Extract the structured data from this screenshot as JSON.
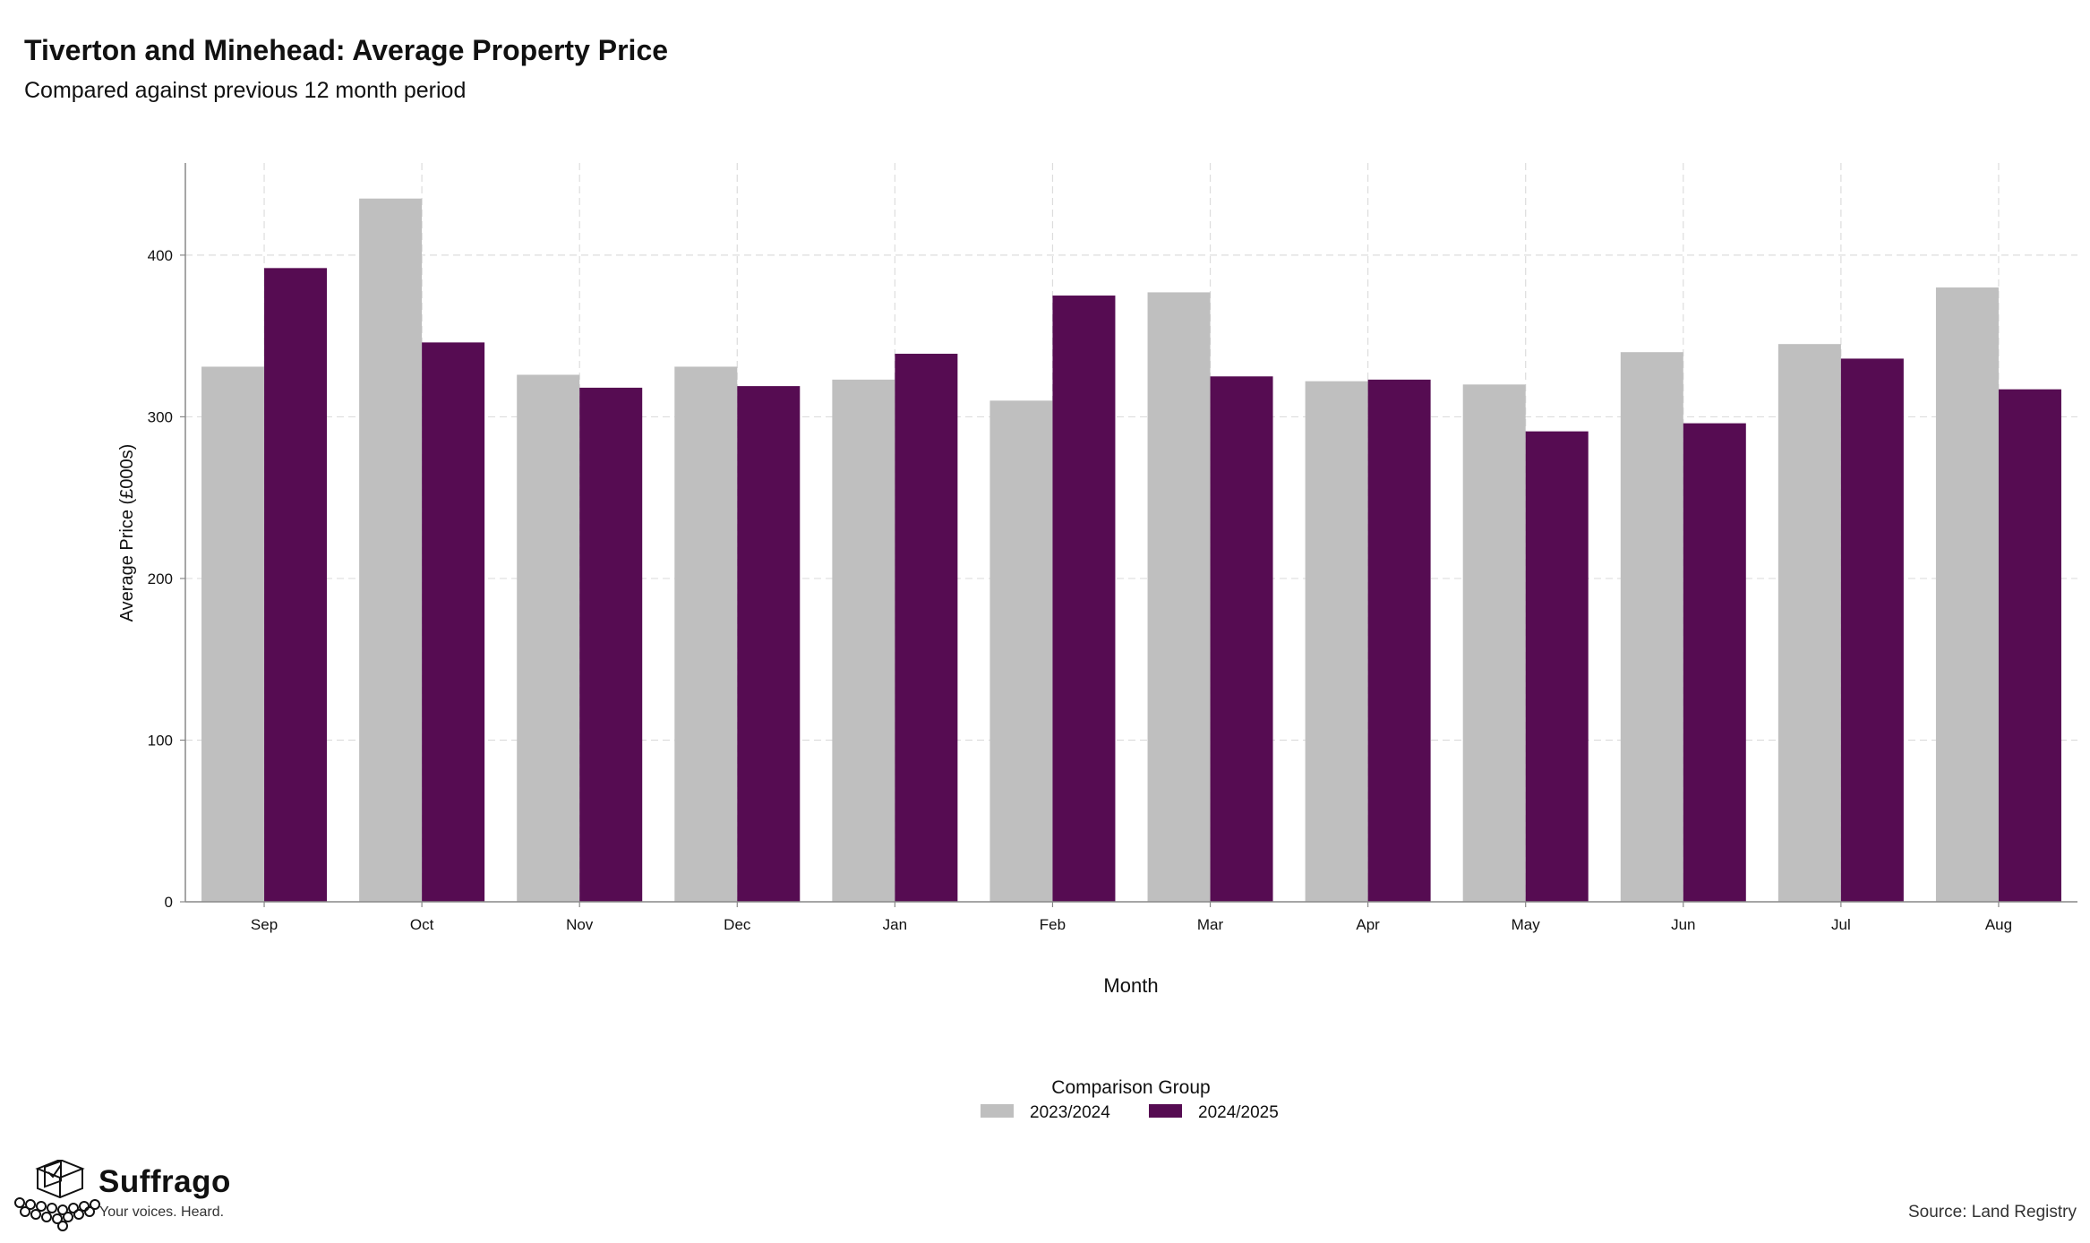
{
  "header": {
    "title": "Tiverton and Minehead: Average Property Price",
    "subtitle": "Compared against previous 12 month period"
  },
  "chart_data": {
    "type": "bar",
    "xlabel": "Month",
    "ylabel": "Average Price (£000s)",
    "categories": [
      "Sep",
      "Oct",
      "Nov",
      "Dec",
      "Jan",
      "Feb",
      "Mar",
      "Apr",
      "May",
      "Jun",
      "Jul",
      "Aug"
    ],
    "series": [
      {
        "name": "2023/2024",
        "color": "#bfbfbf",
        "values": [
          331,
          435,
          326,
          331,
          323,
          310,
          377,
          322,
          320,
          340,
          345,
          380
        ]
      },
      {
        "name": "2024/2025",
        "color": "#560c52",
        "values": [
          392,
          346,
          318,
          319,
          339,
          375,
          325,
          323,
          291,
          296,
          336,
          317
        ]
      }
    ],
    "ylim": [
      0,
      457
    ],
    "yticks": [
      0,
      100,
      200,
      300,
      400
    ],
    "grid": true,
    "legend": {
      "title": "Comparison Group",
      "position": "bottom-center"
    }
  },
  "footer": {
    "logo_name": "Suffrago",
    "logo_tagline": "Your voices. Heard.",
    "source": "Source: Land Registry"
  }
}
